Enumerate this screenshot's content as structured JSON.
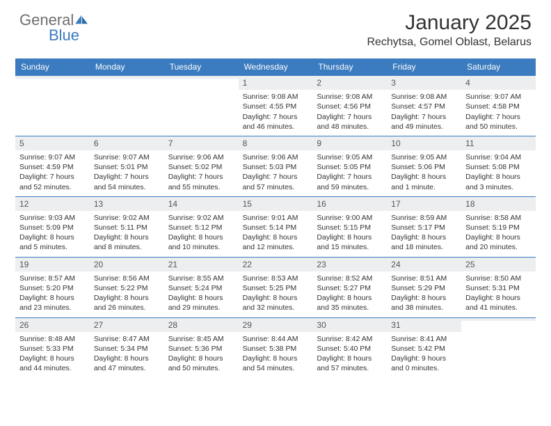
{
  "brand": {
    "word1": "General",
    "word2": "Blue"
  },
  "colors": {
    "accent": "#3b7bbf",
    "header_text": "#ffffff",
    "daybar_bg": "#eceef0",
    "text": "#333333",
    "muted": "#6e6e6e"
  },
  "typography": {
    "title_fontsize": 30,
    "location_fontsize": 16,
    "weekday_fontsize": 12,
    "cell_fontsize": 10.5
  },
  "title": "January 2025",
  "location": "Rechytsa, Gomel Oblast, Belarus",
  "weekdays": [
    "Sunday",
    "Monday",
    "Tuesday",
    "Wednesday",
    "Thursday",
    "Friday",
    "Saturday"
  ],
  "weeks": [
    [
      null,
      null,
      null,
      {
        "day": "1",
        "sunrise": "9:08 AM",
        "sunset": "4:55 PM",
        "daylight": "7 hours and 46 minutes."
      },
      {
        "day": "2",
        "sunrise": "9:08 AM",
        "sunset": "4:56 PM",
        "daylight": "7 hours and 48 minutes."
      },
      {
        "day": "3",
        "sunrise": "9:08 AM",
        "sunset": "4:57 PM",
        "daylight": "7 hours and 49 minutes."
      },
      {
        "day": "4",
        "sunrise": "9:07 AM",
        "sunset": "4:58 PM",
        "daylight": "7 hours and 50 minutes."
      }
    ],
    [
      {
        "day": "5",
        "sunrise": "9:07 AM",
        "sunset": "4:59 PM",
        "daylight": "7 hours and 52 minutes."
      },
      {
        "day": "6",
        "sunrise": "9:07 AM",
        "sunset": "5:01 PM",
        "daylight": "7 hours and 54 minutes."
      },
      {
        "day": "7",
        "sunrise": "9:06 AM",
        "sunset": "5:02 PM",
        "daylight": "7 hours and 55 minutes."
      },
      {
        "day": "8",
        "sunrise": "9:06 AM",
        "sunset": "5:03 PM",
        "daylight": "7 hours and 57 minutes."
      },
      {
        "day": "9",
        "sunrise": "9:05 AM",
        "sunset": "5:05 PM",
        "daylight": "7 hours and 59 minutes."
      },
      {
        "day": "10",
        "sunrise": "9:05 AM",
        "sunset": "5:06 PM",
        "daylight": "8 hours and 1 minute."
      },
      {
        "day": "11",
        "sunrise": "9:04 AM",
        "sunset": "5:08 PM",
        "daylight": "8 hours and 3 minutes."
      }
    ],
    [
      {
        "day": "12",
        "sunrise": "9:03 AM",
        "sunset": "5:09 PM",
        "daylight": "8 hours and 5 minutes."
      },
      {
        "day": "13",
        "sunrise": "9:02 AM",
        "sunset": "5:11 PM",
        "daylight": "8 hours and 8 minutes."
      },
      {
        "day": "14",
        "sunrise": "9:02 AM",
        "sunset": "5:12 PM",
        "daylight": "8 hours and 10 minutes."
      },
      {
        "day": "15",
        "sunrise": "9:01 AM",
        "sunset": "5:14 PM",
        "daylight": "8 hours and 12 minutes."
      },
      {
        "day": "16",
        "sunrise": "9:00 AM",
        "sunset": "5:15 PM",
        "daylight": "8 hours and 15 minutes."
      },
      {
        "day": "17",
        "sunrise": "8:59 AM",
        "sunset": "5:17 PM",
        "daylight": "8 hours and 18 minutes."
      },
      {
        "day": "18",
        "sunrise": "8:58 AM",
        "sunset": "5:19 PM",
        "daylight": "8 hours and 20 minutes."
      }
    ],
    [
      {
        "day": "19",
        "sunrise": "8:57 AM",
        "sunset": "5:20 PM",
        "daylight": "8 hours and 23 minutes."
      },
      {
        "day": "20",
        "sunrise": "8:56 AM",
        "sunset": "5:22 PM",
        "daylight": "8 hours and 26 minutes."
      },
      {
        "day": "21",
        "sunrise": "8:55 AM",
        "sunset": "5:24 PM",
        "daylight": "8 hours and 29 minutes."
      },
      {
        "day": "22",
        "sunrise": "8:53 AM",
        "sunset": "5:25 PM",
        "daylight": "8 hours and 32 minutes."
      },
      {
        "day": "23",
        "sunrise": "8:52 AM",
        "sunset": "5:27 PM",
        "daylight": "8 hours and 35 minutes."
      },
      {
        "day": "24",
        "sunrise": "8:51 AM",
        "sunset": "5:29 PM",
        "daylight": "8 hours and 38 minutes."
      },
      {
        "day": "25",
        "sunrise": "8:50 AM",
        "sunset": "5:31 PM",
        "daylight": "8 hours and 41 minutes."
      }
    ],
    [
      {
        "day": "26",
        "sunrise": "8:48 AM",
        "sunset": "5:33 PM",
        "daylight": "8 hours and 44 minutes."
      },
      {
        "day": "27",
        "sunrise": "8:47 AM",
        "sunset": "5:34 PM",
        "daylight": "8 hours and 47 minutes."
      },
      {
        "day": "28",
        "sunrise": "8:45 AM",
        "sunset": "5:36 PM",
        "daylight": "8 hours and 50 minutes."
      },
      {
        "day": "29",
        "sunrise": "8:44 AM",
        "sunset": "5:38 PM",
        "daylight": "8 hours and 54 minutes."
      },
      {
        "day": "30",
        "sunrise": "8:42 AM",
        "sunset": "5:40 PM",
        "daylight": "8 hours and 57 minutes."
      },
      {
        "day": "31",
        "sunrise": "8:41 AM",
        "sunset": "5:42 PM",
        "daylight": "9 hours and 0 minutes."
      },
      null
    ]
  ],
  "labels": {
    "sunrise": "Sunrise:",
    "sunset": "Sunset:",
    "daylight": "Daylight:"
  }
}
